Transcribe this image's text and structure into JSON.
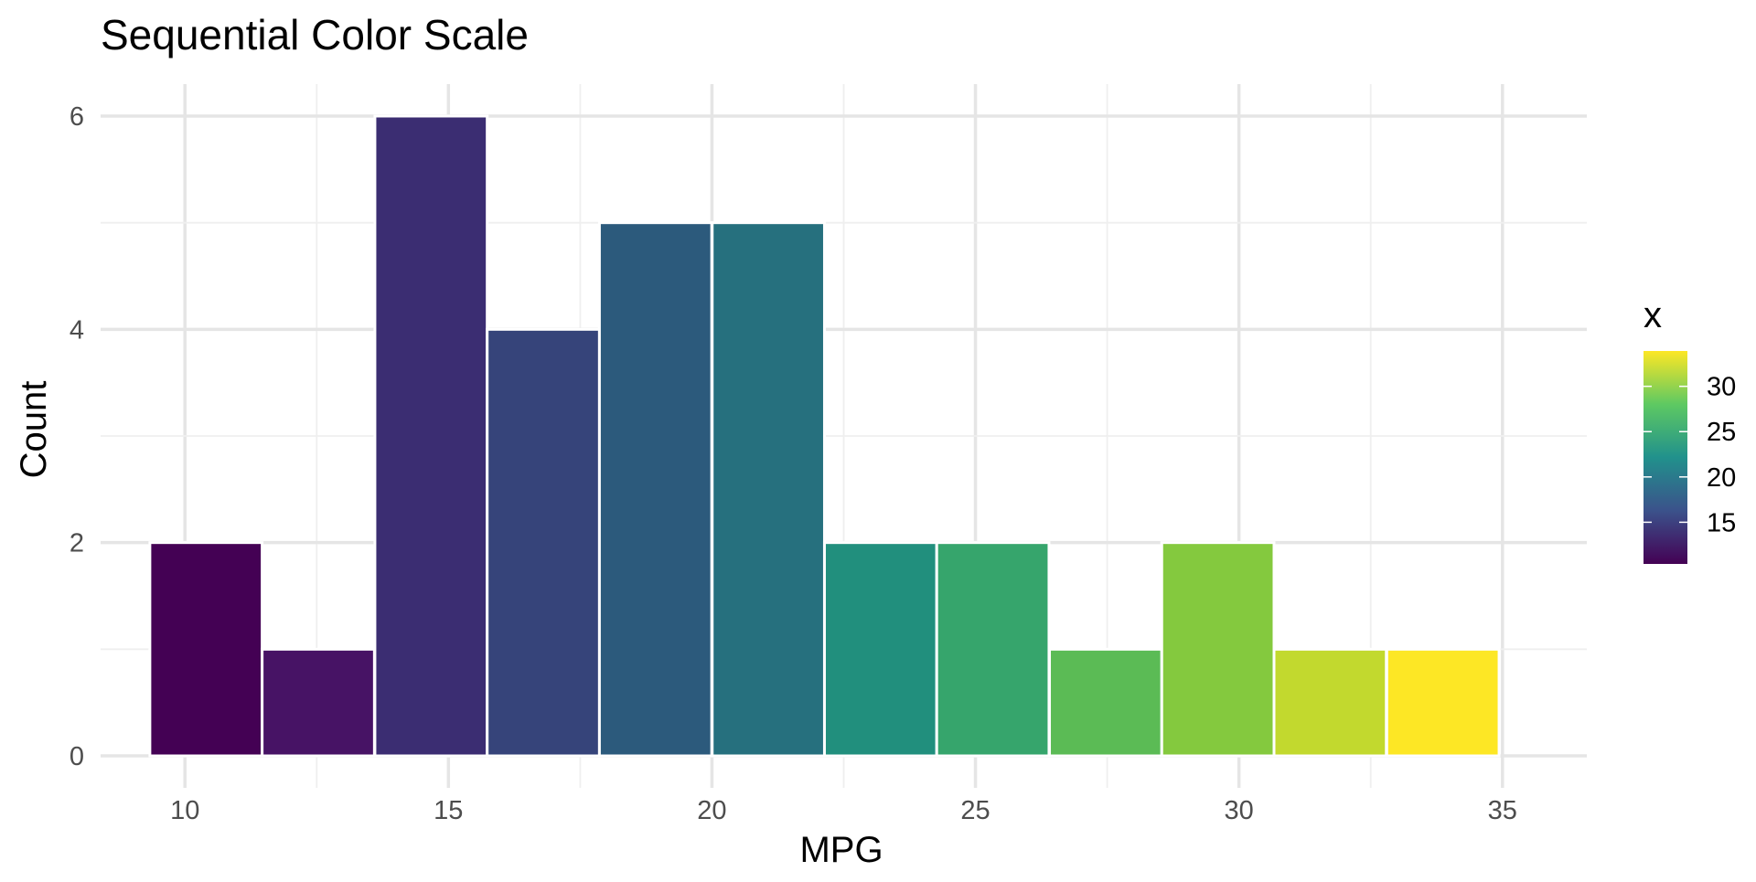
{
  "chart_data": {
    "type": "bar",
    "title": "Sequential Color Scale",
    "xlabel": "MPG",
    "ylabel": "Count",
    "x_bin_width": 2.13,
    "bins": [
      {
        "x": 10.4,
        "count": 2,
        "color": "#440154"
      },
      {
        "x": 12.53,
        "count": 1,
        "color": "#471365"
      },
      {
        "x": 14.67,
        "count": 6,
        "color": "#3b2d72"
      },
      {
        "x": 16.8,
        "count": 4,
        "color": "#36447a"
      },
      {
        "x": 18.93,
        "count": 5,
        "color": "#2c5a7c"
      },
      {
        "x": 21.07,
        "count": 5,
        "color": "#26707e"
      },
      {
        "x": 23.2,
        "count": 2,
        "color": "#218f7d"
      },
      {
        "x": 25.33,
        "count": 2,
        "color": "#36a56c"
      },
      {
        "x": 27.47,
        "count": 1,
        "color": "#5bbb55"
      },
      {
        "x": 29.6,
        "count": 2,
        "color": "#84c93e"
      },
      {
        "x": 31.73,
        "count": 1,
        "color": "#c2d92e"
      },
      {
        "x": 33.87,
        "count": 1,
        "color": "#fde725"
      }
    ],
    "xlim": [
      8.4,
      36.6
    ],
    "ylim": [
      -0.3,
      6.3
    ],
    "x_ticks": [
      10,
      15,
      20,
      25,
      30,
      35
    ],
    "y_ticks": [
      0,
      2,
      4,
      6
    ],
    "grid": true,
    "legend": {
      "title": "x",
      "position": "right",
      "type": "colorbar",
      "range": [
        10.4,
        33.9
      ],
      "ticks": [
        15,
        20,
        25,
        30
      ],
      "colors": [
        "#440154",
        "#3b528b",
        "#21918c",
        "#5ec962",
        "#fde725"
      ]
    }
  }
}
